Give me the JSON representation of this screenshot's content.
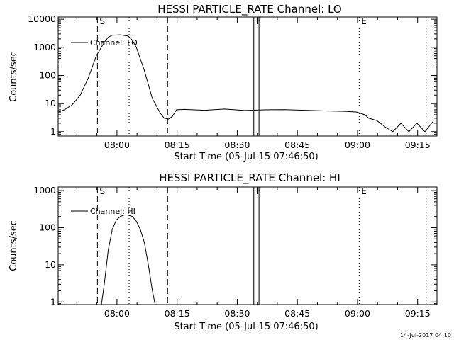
{
  "footer": {
    "timestamp": "14-Jul-2017 04:10"
  },
  "chart_data": [
    {
      "type": "line",
      "title": "HESSI PARTICLE_RATE Channel: LO",
      "xlabel": "Start Time (05-Jul-15 07:46:50)",
      "ylabel": "Counts/sec",
      "yscale": "log",
      "ylim": [
        0.7,
        12000
      ],
      "xlim_min": [
        -1.5,
        93
      ],
      "xticks_min": [
        13.17,
        28.17,
        43.17,
        58.17,
        73.17,
        88.17
      ],
      "xtick_labels": [
        "08:00",
        "08:15",
        "08:30",
        "08:45",
        "09:00",
        "09:15"
      ],
      "ytick_values": [
        1,
        10,
        100,
        1000,
        10000
      ],
      "ytick_labels": [
        "1",
        "10",
        "100",
        "1000",
        "10000"
      ],
      "legend": {
        "position": "top-left",
        "entries": [
          "Channel: LO"
        ]
      },
      "grid": false,
      "series": [
        {
          "name": "Channel: LO",
          "color": "#000000",
          "x_min": [
            -1.5,
            0,
            2,
            4,
            6,
            8,
            10,
            11,
            12,
            14,
            16,
            17,
            18,
            20,
            22,
            24,
            25,
            26,
            27,
            28,
            30,
            35,
            40,
            45,
            50,
            55,
            60,
            65,
            70,
            73,
            75,
            76,
            78,
            80,
            82,
            84,
            86,
            88,
            90,
            92
          ],
          "y": [
            5,
            6,
            9,
            20,
            80,
            500,
            1500,
            2300,
            2700,
            2800,
            2500,
            1800,
            1000,
            150,
            15,
            4.5,
            3,
            2.8,
            3.5,
            6,
            6.2,
            5.8,
            6.4,
            5.7,
            6,
            6.1,
            5.8,
            5.5,
            5.3,
            5,
            4,
            3,
            2.5,
            1.5,
            1,
            2,
            1,
            2,
            1,
            2.3
          ]
        }
      ],
      "markers": [
        {
          "label": "S",
          "x_min": 8.3,
          "style": "dashed"
        },
        {
          "label": "",
          "x_min": 16.2,
          "style": "dotted"
        },
        {
          "label": "",
          "x_min": 25.8,
          "style": "dashed"
        },
        {
          "label": "F",
          "x_min": 47.3,
          "style": "solid"
        },
        {
          "label": "",
          "x_min": 48.6,
          "style": "solid"
        },
        {
          "label": "E",
          "x_min": 73.6,
          "style": "dotted"
        },
        {
          "label": "",
          "x_min": 90.3,
          "style": "dotted"
        }
      ]
    },
    {
      "type": "line",
      "title": "HESSI PARTICLE_RATE Channel: HI",
      "xlabel": "Start Time (05-Jul-15 07:46:50)",
      "ylabel": "Counts/sec",
      "yscale": "log",
      "ylim": [
        0.85,
        1250
      ],
      "xlim_min": [
        -1.5,
        93
      ],
      "xticks_min": [
        13.17,
        28.17,
        43.17,
        58.17,
        73.17,
        88.17
      ],
      "xtick_labels": [
        "08:00",
        "08:15",
        "08:30",
        "08:45",
        "09:00",
        "09:15"
      ],
      "ytick_values": [
        1,
        10,
        100,
        1000
      ],
      "ytick_labels": [
        "1",
        "10",
        "100",
        "1000"
      ],
      "legend": {
        "position": "top-left",
        "entries": [
          "Channel: HI"
        ]
      },
      "grid": false,
      "series": [
        {
          "name": "Channel: HI",
          "color": "#000000",
          "x_min": [
            9.3,
            10,
            11,
            12,
            13,
            14,
            15,
            16,
            17,
            18,
            19,
            20,
            21,
            22,
            22.7
          ],
          "y": [
            0.85,
            3,
            25,
            90,
            160,
            200,
            220,
            220,
            200,
            150,
            90,
            40,
            10,
            2,
            0.85
          ]
        }
      ],
      "markers": [
        {
          "label": "S",
          "x_min": 8.3,
          "style": "dashed"
        },
        {
          "label": "",
          "x_min": 16.2,
          "style": "dotted"
        },
        {
          "label": "",
          "x_min": 25.8,
          "style": "dashed"
        },
        {
          "label": "F",
          "x_min": 47.3,
          "style": "solid"
        },
        {
          "label": "",
          "x_min": 48.6,
          "style": "solid"
        },
        {
          "label": "E",
          "x_min": 73.6,
          "style": "dotted"
        },
        {
          "label": "",
          "x_min": 90.3,
          "style": "dotted"
        }
      ]
    }
  ]
}
